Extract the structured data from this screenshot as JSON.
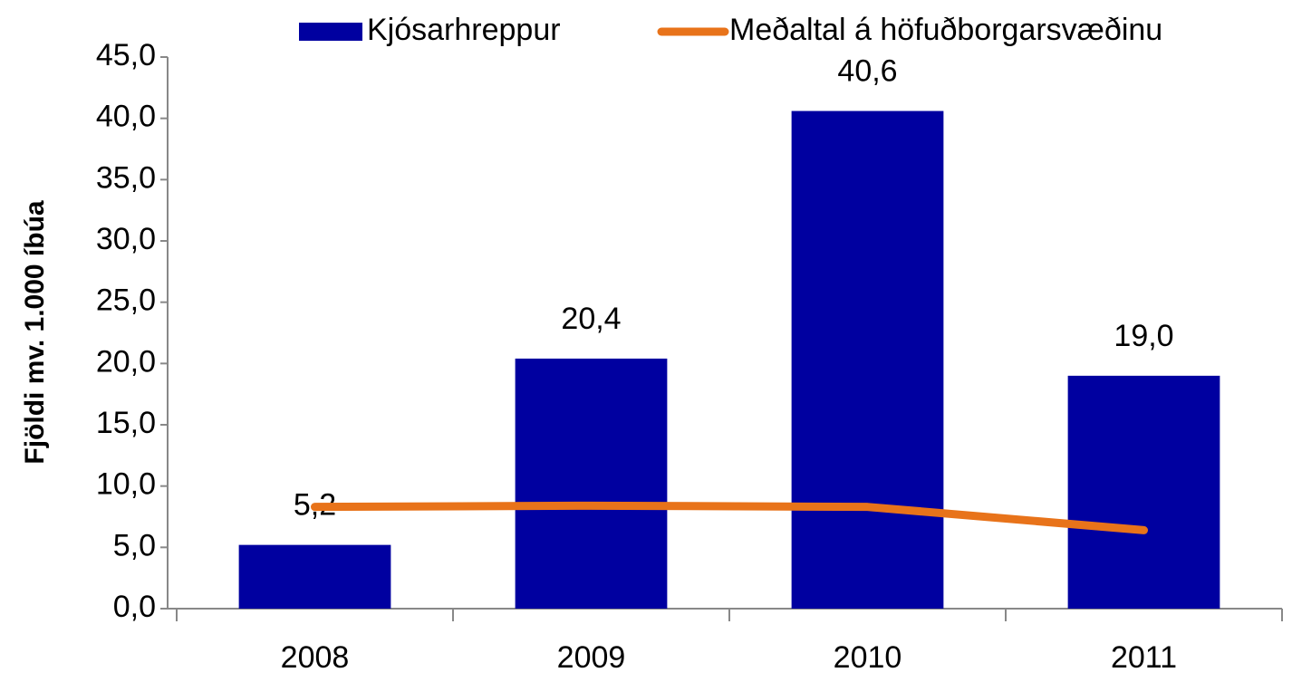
{
  "chart_data": {
    "type": "bar",
    "y_label": "Fjöldi mv. 1.000 íbúa",
    "categories": [
      "2008",
      "2009",
      "2010",
      "2011"
    ],
    "series": [
      {
        "name": "Kjósarhreppur",
        "type": "bar",
        "color": "#0000a0",
        "values": [
          5.2,
          20.4,
          40.6,
          19.0
        ],
        "value_labels": [
          "5,2",
          "20,4",
          "40,6",
          "19,0"
        ]
      },
      {
        "name": "Meðaltal á höfuðborgarsvæðinu",
        "type": "line",
        "color": "#e8731a",
        "values": [
          8.3,
          8.4,
          8.3,
          6.4
        ]
      }
    ],
    "ylim": [
      0,
      45
    ],
    "yticks": [
      {
        "value": 0,
        "label": "0,0"
      },
      {
        "value": 5,
        "label": "5,0"
      },
      {
        "value": 10,
        "label": "10,0"
      },
      {
        "value": 15,
        "label": "15,0"
      },
      {
        "value": 20,
        "label": "20,0"
      },
      {
        "value": 25,
        "label": "25,0"
      },
      {
        "value": 30,
        "label": "30,0"
      },
      {
        "value": 35,
        "label": "35,0"
      },
      {
        "value": 40,
        "label": "40,0"
      },
      {
        "value": 45,
        "label": "45,0"
      }
    ],
    "grid": false,
    "legend": "top"
  }
}
